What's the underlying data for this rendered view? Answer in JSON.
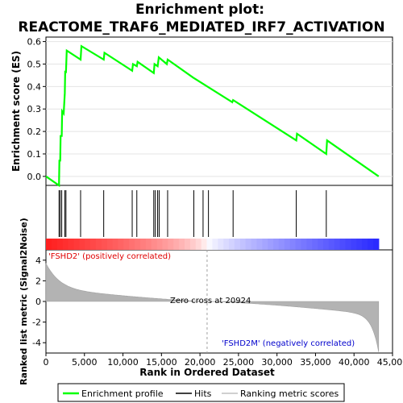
{
  "chart_data": {
    "type": "line",
    "title_line1": "Enrichment plot:",
    "title_line2": "REACTOME_TRAF6_MEDIATED_IRF7_ACTIVATION",
    "es_panel": {
      "ylabel": "Enrichment score (ES)",
      "ylim": [
        -0.04,
        0.62
      ],
      "yticks": [
        0.0,
        0.1,
        0.2,
        0.3,
        0.4,
        0.5,
        0.6
      ],
      "line_color": "#00ff00",
      "points": [
        [
          0,
          0.0
        ],
        [
          1700,
          -0.04
        ],
        [
          1750,
          0.07
        ],
        [
          1850,
          0.07
        ],
        [
          1900,
          0.18
        ],
        [
          2050,
          0.18
        ],
        [
          2100,
          0.29
        ],
        [
          2300,
          0.28
        ],
        [
          2450,
          0.37
        ],
        [
          2500,
          0.47
        ],
        [
          2600,
          0.46
        ],
        [
          2700,
          0.56
        ],
        [
          4500,
          0.52
        ],
        [
          4600,
          0.58
        ],
        [
          7500,
          0.52
        ],
        [
          7600,
          0.55
        ],
        [
          11200,
          0.47
        ],
        [
          11300,
          0.5
        ],
        [
          11800,
          0.49
        ],
        [
          11900,
          0.51
        ],
        [
          14000,
          0.46
        ],
        [
          14100,
          0.5
        ],
        [
          14500,
          0.49
        ],
        [
          14650,
          0.53
        ],
        [
          15700,
          0.5
        ],
        [
          15800,
          0.52
        ],
        [
          19100,
          0.44
        ],
        [
          24200,
          0.33
        ],
        [
          24300,
          0.34
        ],
        [
          32500,
          0.16
        ],
        [
          32600,
          0.19
        ],
        [
          36400,
          0.1
        ],
        [
          36500,
          0.16
        ],
        [
          43200,
          0.0
        ]
      ]
    },
    "hits": [
      1700,
      1850,
      2050,
      2450,
      2600,
      4500,
      7500,
      11200,
      11800,
      14000,
      14200,
      14500,
      14700,
      15800,
      19200,
      20400,
      21100,
      24300,
      32500,
      36400
    ],
    "metric_panel": {
      "ylabel": "Ranked list metric (Signal2Noise)",
      "ylim": [
        -5,
        5
      ],
      "yticks": [
        -4,
        -2,
        0,
        2,
        4
      ],
      "pos_label": "'FSHD2' (positively correlated)",
      "neg_label": "'FSHD2M' (negatively correlated)",
      "zero_cross_label": "Zero cross at 20924",
      "zero_cross": 20924
    },
    "xlabel": "Rank in Ordered Dataset",
    "xlim": [
      0,
      45000
    ],
    "xticks": [
      0,
      5000,
      10000,
      15000,
      20000,
      25000,
      30000,
      35000,
      40000,
      45000
    ],
    "xtick_labels": [
      "0",
      "5,000",
      "10,000",
      "15,000",
      "20,000",
      "25,000",
      "30,000",
      "35,000",
      "40,000",
      "45,000"
    ],
    "n_genes": 43200,
    "legend": {
      "items": [
        "Enrichment profile",
        "Hits",
        "Ranking metric scores"
      ],
      "colors": [
        "#00ff00",
        "#000000",
        "#c0c0c0"
      ]
    }
  }
}
